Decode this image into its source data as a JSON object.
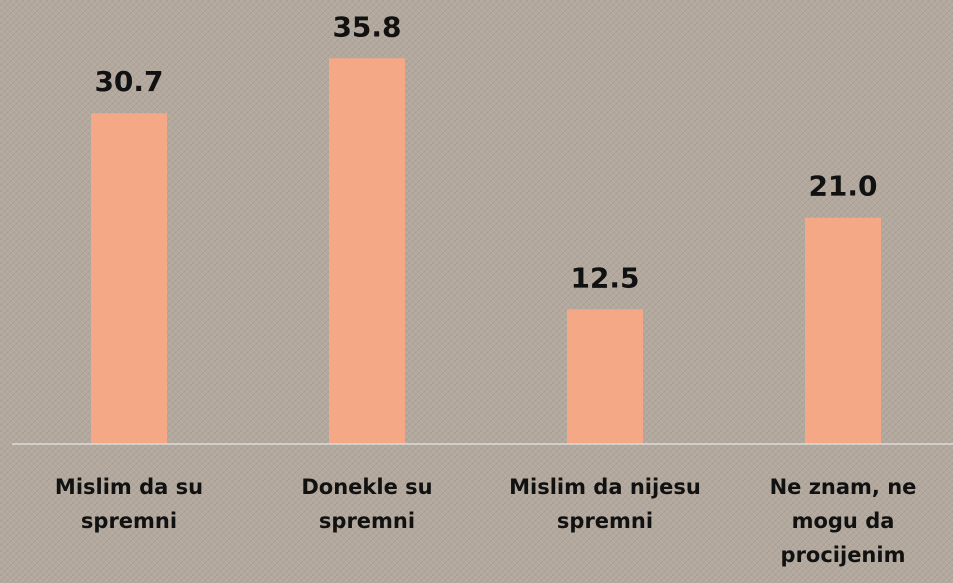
{
  "chart_data": {
    "type": "bar",
    "categories": [
      "Mislim da su spremni",
      "Donekle su spremni",
      "Mislim da nijesu spremni",
      "Ne znam, ne mogu da procijenim"
    ],
    "values": [
      30.7,
      35.8,
      12.5,
      21.0
    ],
    "value_labels": [
      "30.7",
      "35.8",
      "12.5",
      "21.0"
    ],
    "color": "#f4a886",
    "ylim": [
      0,
      40
    ]
  }
}
